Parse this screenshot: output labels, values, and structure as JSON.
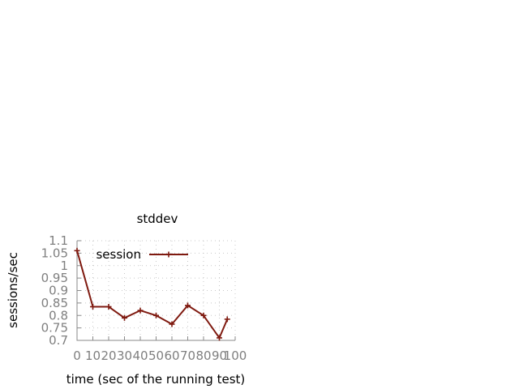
{
  "chart_data": {
    "type": "line",
    "title": "stddev",
    "xlabel": "time (sec of the running test)",
    "ylabel": "sessions/sec",
    "xlim": [
      0,
      100
    ],
    "ylim": [
      0.7,
      1.1
    ],
    "x_ticks": [
      0,
      10,
      20,
      30,
      40,
      50,
      60,
      70,
      80,
      90,
      100
    ],
    "x_tick_labels": [
      "0",
      "10",
      "20",
      "30",
      "40",
      "50",
      "60",
      "70",
      "80",
      "90",
      "100"
    ],
    "y_ticks": [
      0.7,
      0.75,
      0.8,
      0.85,
      0.9,
      0.95,
      1.0,
      1.05,
      1.1
    ],
    "y_tick_labels": [
      "0.7",
      "0.75",
      "0.8",
      "0.85",
      "0.9",
      "0.95",
      "1",
      "1.05",
      "1.1"
    ],
    "grid": true,
    "legend_position": "top-right",
    "series": [
      {
        "name": "session",
        "color": "#7f1a10",
        "marker": "plus",
        "x": [
          0,
          10,
          20,
          30,
          40,
          50,
          60,
          70,
          80,
          90,
          95
        ],
        "y": [
          1.06,
          0.835,
          0.835,
          0.79,
          0.82,
          0.8,
          0.765,
          0.84,
          0.8,
          0.71,
          0.785
        ]
      }
    ]
  }
}
